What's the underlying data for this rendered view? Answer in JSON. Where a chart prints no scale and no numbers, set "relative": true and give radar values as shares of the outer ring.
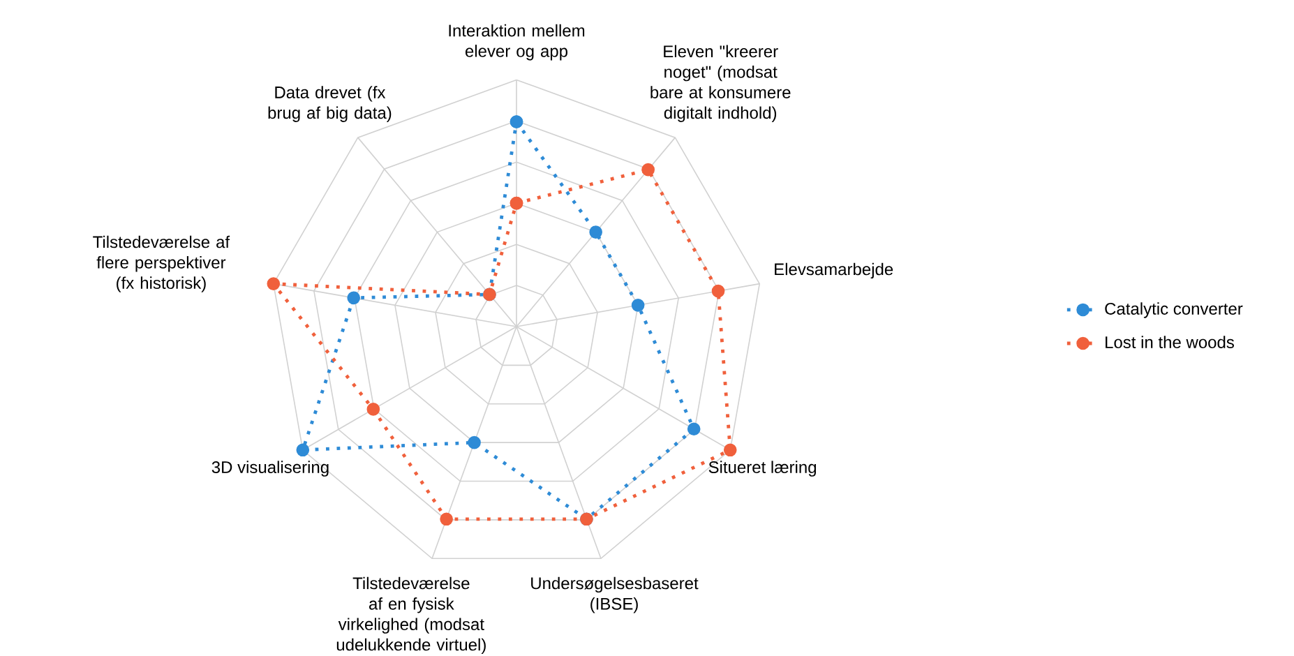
{
  "chart_data": {
    "type": "radar",
    "relative": true,
    "grid": true,
    "legend": "right",
    "marker": "circle",
    "line_style": "dotted",
    "categories": [
      "Interaktion mellem elever og app",
      "Eleven \"kreerer noget\" (modsat bare at konsumere digitalt indhold)",
      "Elevsamarbejde",
      "Situeret læring",
      "Undersøgelsesbaseret (IBSE)",
      "Tilstedeværelse af en fysisk virkelighed (modsat udelukkende virtuel)",
      "3D visualisering",
      "Tilstedeværelse af flere perspektiver (fx historisk)",
      "Data drevet (fx brug af big data)"
    ],
    "series": [
      {
        "name": "Catalytic converter",
        "color": "#2e8bd6",
        "values": [
          0.83,
          0.5,
          0.5,
          0.83,
          0.83,
          0.5,
          1,
          0.67,
          0.17
        ]
      },
      {
        "name": "Lost in the woods",
        "color": "#f0603c",
        "values": [
          0.5,
          0.83,
          0.83,
          1,
          0.83,
          0.83,
          0.67,
          1,
          0.17
        ]
      }
    ]
  }
}
